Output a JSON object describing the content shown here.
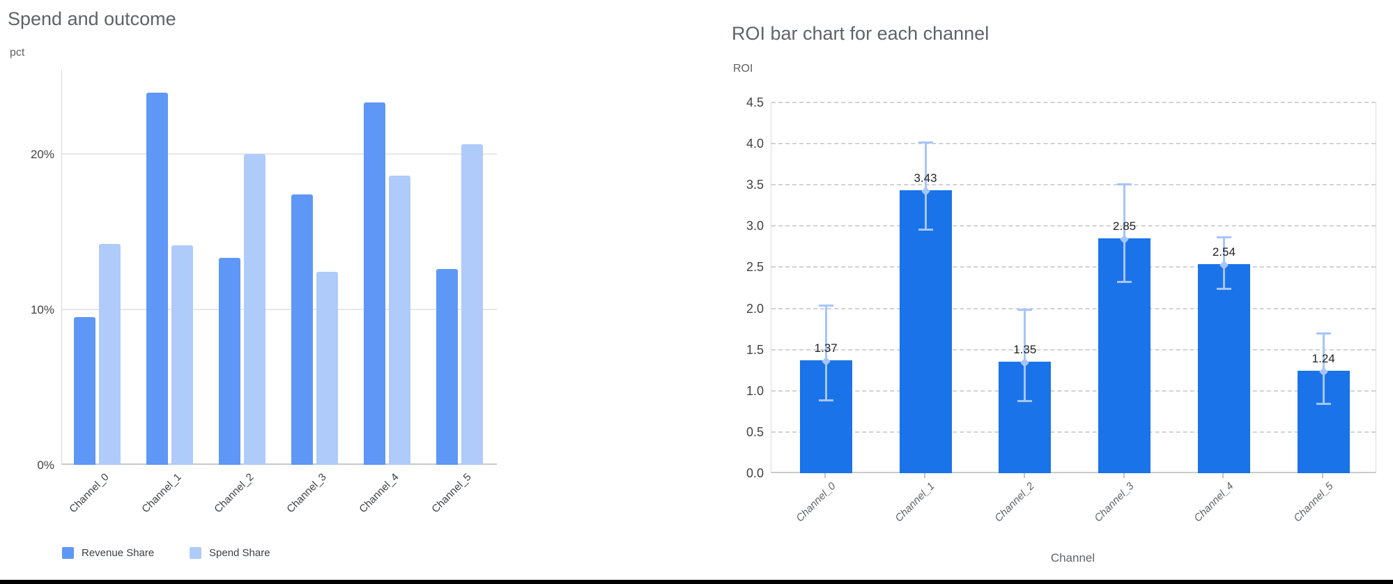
{
  "page": {
    "background": "#ffffff",
    "bottom_rule_color": "#000000"
  },
  "chart_data": [
    {
      "type": "bar",
      "title": "Spend and outcome",
      "y_axis_title": "pct",
      "unit": "%",
      "categories": [
        "Channel_0",
        "Channel_1",
        "Channel_2",
        "Channel_3",
        "Channel_4",
        "Channel_5"
      ],
      "series": [
        {
          "name": "Revenue Share",
          "color": "#5e97f6",
          "values": [
            9.5,
            23.9,
            13.3,
            17.4,
            23.3,
            12.6
          ]
        },
        {
          "name": "Spend Share",
          "color": "#aecbfa",
          "values": [
            14.2,
            14.1,
            20.0,
            12.4,
            18.6,
            20.6
          ]
        }
      ],
      "y_ticks": [
        {
          "v": 0,
          "label": "0%"
        },
        {
          "v": 10,
          "label": "10%"
        },
        {
          "v": 20,
          "label": "20%"
        }
      ],
      "ylim": [
        0,
        25.4
      ],
      "grid": "solid",
      "legend_position": "bottom"
    },
    {
      "type": "bar",
      "title": "ROI bar chart for each channel",
      "y_axis_title": "ROI",
      "x_axis_title": "Channel",
      "categories": [
        "Channel_0",
        "Channel_1",
        "Channel_2",
        "Channel_3",
        "Channel_4",
        "Channel_5"
      ],
      "series": [
        {
          "name": "ROI",
          "color": "#1a73e8",
          "values": [
            1.37,
            3.43,
            1.35,
            2.85,
            2.54,
            1.24
          ],
          "error_low": [
            0.88,
            2.95,
            0.87,
            2.32,
            2.23,
            0.84
          ],
          "error_high": [
            2.04,
            4.02,
            1.99,
            3.51,
            2.87,
            1.7
          ],
          "error_color": "#a6c5fa"
        }
      ],
      "data_labels": [
        "1.37",
        "3.43",
        "1.35",
        "2.85",
        "2.54",
        "1.24"
      ],
      "y_ticks": [
        {
          "v": 0.0,
          "label": "0.0"
        },
        {
          "v": 0.5,
          "label": "0.5"
        },
        {
          "v": 1.0,
          "label": "1.0"
        },
        {
          "v": 1.5,
          "label": "1.5"
        },
        {
          "v": 2.0,
          "label": "2.0"
        },
        {
          "v": 2.5,
          "label": "2.5"
        },
        {
          "v": 3.0,
          "label": "3.0"
        },
        {
          "v": 3.5,
          "label": "3.5"
        },
        {
          "v": 4.0,
          "label": "4.0"
        },
        {
          "v": 4.5,
          "label": "4.5"
        },
        {
          "v": 4.5,
          "label": "4.5"
        }
      ],
      "ylim": [
        0,
        4.5
      ],
      "grid": "dashed",
      "legend_position": "none"
    }
  ]
}
